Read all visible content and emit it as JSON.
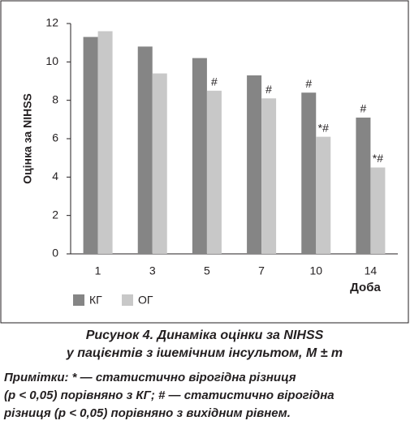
{
  "chart_data": {
    "type": "bar",
    "y_label": "Оцінка за NIHSS",
    "x_label": "Доба",
    "categories": [
      "1",
      "3",
      "5",
      "7",
      "10",
      "14"
    ],
    "series": [
      {
        "name": "КГ",
        "color": "#858585",
        "values": [
          11.3,
          10.8,
          10.2,
          9.3,
          8.4,
          7.1
        ],
        "notes": [
          null,
          null,
          null,
          null,
          "#",
          "#"
        ]
      },
      {
        "name": "ОГ",
        "color": "#c8c8c8",
        "values": [
          11.6,
          9.4,
          8.5,
          8.1,
          6.1,
          4.5
        ],
        "notes": [
          null,
          null,
          "#",
          "#",
          "*#",
          "*#"
        ]
      }
    ],
    "ylim": [
      0,
      12
    ],
    "yticks": [
      0,
      2,
      4,
      6,
      8,
      10,
      12
    ]
  },
  "caption": [
    "Рисунок 4. Динаміка оцінки за NIHSS",
    "у пацієнтів з ішемічним інсультом, M ± m"
  ],
  "notes": [
    "Примітки: * — статистично вірогідна різниця",
    "(p < 0,05) порівняно з КГ; # — статистично вірогідна",
    "різниця (p < 0,05) порівняно з вихідним рівнем."
  ]
}
